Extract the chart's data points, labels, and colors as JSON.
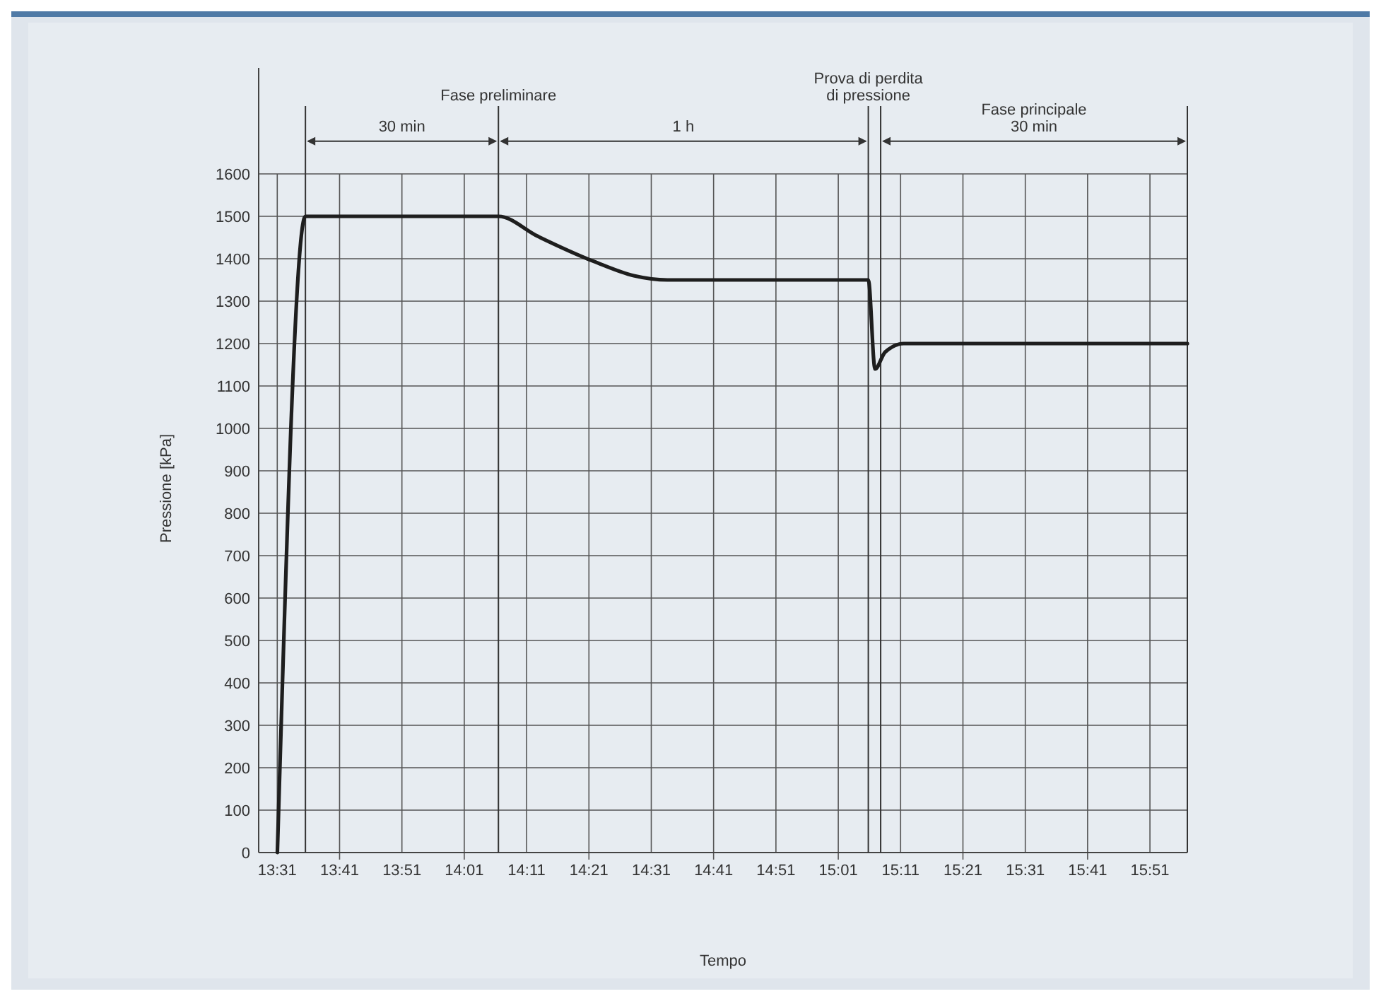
{
  "chart_data": {
    "type": "line",
    "xlabel": "Tempo",
    "ylabel": "Pressione [kPa]",
    "x": [
      13.517,
      13.592,
      14.108,
      14.213,
      14.365,
      14.47,
      14.56,
      15.097,
      15.115,
      15.142,
      15.192,
      15.95
    ],
    "series": [
      {
        "color": "#1e1e1e",
        "values": [
          0,
          1500,
          1500,
          1453,
          1393,
          1360,
          1350,
          1350,
          1140,
          1180,
          1200,
          1200
        ]
      }
    ],
    "xlim": [
      13.467,
      15.95
    ],
    "ylim": [
      0,
      1850
    ],
    "xticks": [
      {
        "value": 13.5167,
        "label": "13:31"
      },
      {
        "value": 13.6833,
        "label": "13:41"
      },
      {
        "value": 13.85,
        "label": "13:51"
      },
      {
        "value": 14.0167,
        "label": "14:01"
      },
      {
        "value": 14.1833,
        "label": "14:11"
      },
      {
        "value": 14.35,
        "label": "14:21"
      },
      {
        "value": 14.5167,
        "label": "14:31"
      },
      {
        "value": 14.6833,
        "label": "14:41"
      },
      {
        "value": 14.85,
        "label": "14:51"
      },
      {
        "value": 15.0167,
        "label": "15:01"
      },
      {
        "value": 15.1833,
        "label": "15:11"
      },
      {
        "value": 15.35,
        "label": "15:21"
      },
      {
        "value": 15.5167,
        "label": "15:31"
      },
      {
        "value": 15.6833,
        "label": "15:41"
      },
      {
        "value": 15.85,
        "label": "15:51"
      }
    ],
    "yticks": [
      0,
      100,
      200,
      300,
      400,
      500,
      600,
      700,
      800,
      900,
      1000,
      1100,
      1200,
      1300,
      1400,
      1500,
      1600
    ],
    "ref_lines": [
      {
        "axis": "x",
        "value": 13.592,
        "color": "#333333"
      },
      {
        "axis": "x",
        "value": 14.108,
        "label": "Fase preliminare",
        "color": "#333333"
      },
      {
        "axis": "x",
        "value": 15.097,
        "label": "Prova di perdita\ndi pressione",
        "color": "#333333"
      },
      {
        "axis": "x",
        "value": 15.13,
        "color": "#333333"
      },
      {
        "axis": "x",
        "value": 15.95,
        "color": "#333333"
      }
    ],
    "annotations": [
      "30 min",
      "1 h",
      "Fase principale\n30 min"
    ],
    "grid": true,
    "marker": "none",
    "line_style": "solid"
  }
}
